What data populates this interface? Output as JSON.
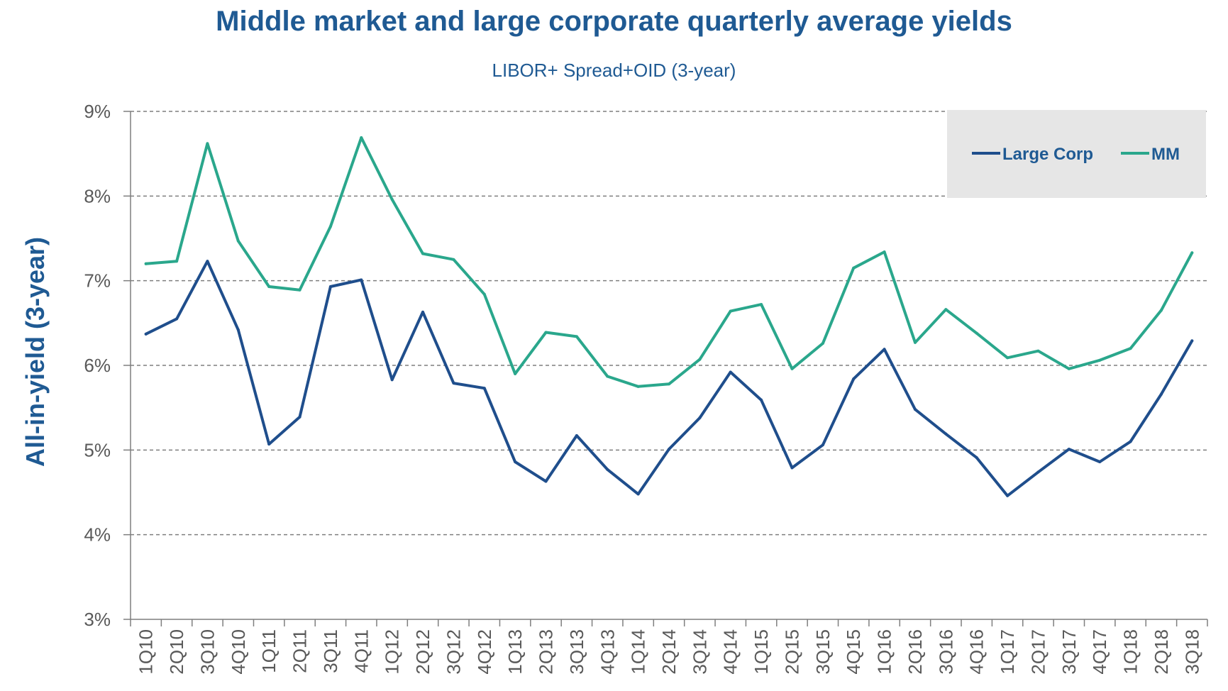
{
  "chart_data": {
    "type": "line",
    "title": "Middle market and large corporate quarterly average yields",
    "subtitle": "LIBOR+ Spread+OID (3-year)",
    "ylabel": "All-in-yield (3-year)",
    "xlabel": "",
    "ylim": [
      3,
      9
    ],
    "yticks": [
      "3%",
      "4%",
      "5%",
      "6%",
      "7%",
      "8%",
      "9%"
    ],
    "grid": "horizontal dashed",
    "legend_position": "top-right",
    "categories": [
      "1Q10",
      "2Q10",
      "3Q10",
      "4Q10",
      "1Q11",
      "2Q11",
      "3Q11",
      "4Q11",
      "1Q12",
      "2Q12",
      "3Q12",
      "4Q12",
      "1Q13",
      "2Q13",
      "3Q13",
      "4Q13",
      "1Q14",
      "2Q14",
      "3Q14",
      "4Q14",
      "1Q15",
      "2Q15",
      "3Q15",
      "4Q15",
      "1Q16",
      "2Q16",
      "3Q16",
      "4Q16",
      "1Q17",
      "2Q17",
      "3Q17",
      "4Q17",
      "1Q18",
      "2Q18",
      "3Q18"
    ],
    "series": [
      {
        "name": "Large Corp",
        "color": "#1f4e8c",
        "values": [
          6.37,
          6.55,
          7.23,
          6.42,
          5.07,
          5.39,
          6.93,
          7.01,
          5.83,
          6.63,
          5.79,
          5.73,
          4.86,
          4.63,
          5.17,
          4.77,
          4.48,
          5.01,
          5.38,
          5.92,
          5.59,
          4.79,
          5.06,
          5.84,
          6.19,
          5.48,
          5.19,
          4.91,
          4.46,
          4.74,
          5.01,
          4.86,
          5.1,
          5.66,
          6.29
        ]
      },
      {
        "name": "MM",
        "color": "#2aa78c",
        "values": [
          7.2,
          7.23,
          8.62,
          7.47,
          6.93,
          6.89,
          7.64,
          8.69,
          7.96,
          7.32,
          7.25,
          6.84,
          5.9,
          6.39,
          6.34,
          5.87,
          5.75,
          5.78,
          6.07,
          6.64,
          6.72,
          5.96,
          6.26,
          7.15,
          7.34,
          6.27,
          6.66,
          6.38,
          6.09,
          6.17,
          5.96,
          6.06,
          6.2,
          6.65,
          7.33
        ]
      }
    ]
  }
}
